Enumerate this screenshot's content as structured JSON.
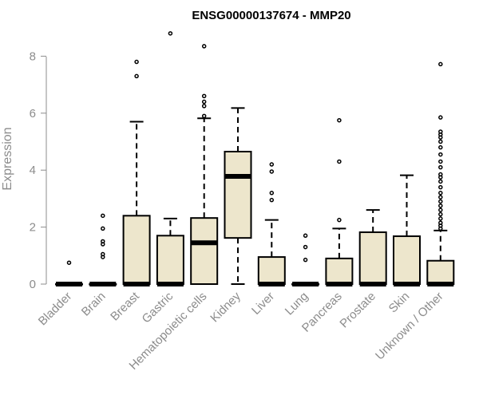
{
  "chart_data": {
    "type": "boxplot",
    "title": "ENSG00000137674 - MMP20",
    "xlabel": "",
    "ylabel": "Expression",
    "ylim": [
      0,
      8.8
    ],
    "yticks": [
      0,
      2,
      4,
      6,
      8
    ],
    "box_color": "#ede6cc",
    "outline_color": "#000000",
    "axis_color": "#8c8c8c",
    "categories": [
      "Bladder",
      "Brain",
      "Breast",
      "Gastric",
      "Hematopoietic cells",
      "Kidney",
      "Liver",
      "Lung",
      "Pancreas",
      "Prostate",
      "Skin",
      "Unknown / Other"
    ],
    "boxes": [
      {
        "q1": 0,
        "median": 0,
        "q3": 0,
        "whisker_low": 0,
        "whisker_high": 0,
        "outliers": [
          0.75
        ]
      },
      {
        "q1": 0,
        "median": 0,
        "q3": 0,
        "whisker_low": 0,
        "whisker_high": 0,
        "outliers": [
          0.95,
          1.05,
          1.4,
          1.5,
          1.95,
          2.4
        ]
      },
      {
        "q1": 0,
        "median": 0,
        "q3": 2.4,
        "whisker_low": 0,
        "whisker_high": 5.7,
        "outliers": [
          7.3,
          7.8
        ]
      },
      {
        "q1": 0,
        "median": 0,
        "q3": 1.7,
        "whisker_low": 0,
        "whisker_high": 2.3,
        "outliers": [
          8.8
        ]
      },
      {
        "q1": 0,
        "median": 1.45,
        "q3": 2.32,
        "whisker_low": 0,
        "whisker_high": 5.82,
        "outliers": [
          5.9,
          6.25,
          6.4,
          6.6,
          8.35
        ]
      },
      {
        "q1": 1.62,
        "median": 3.78,
        "q3": 4.65,
        "whisker_low": 0,
        "whisker_high": 6.18,
        "outliers": []
      },
      {
        "q1": 0,
        "median": 0,
        "q3": 0.95,
        "whisker_low": 0,
        "whisker_high": 2.25,
        "outliers": [
          2.95,
          3.2,
          3.95,
          4.2
        ]
      },
      {
        "q1": 0,
        "median": 0,
        "q3": 0,
        "whisker_low": 0,
        "whisker_high": 0,
        "outliers": [
          0.85,
          1.3,
          1.7
        ]
      },
      {
        "q1": 0,
        "median": 0,
        "q3": 0.9,
        "whisker_low": 0,
        "whisker_high": 1.95,
        "outliers": [
          2.25,
          4.3,
          5.75
        ]
      },
      {
        "q1": 0,
        "median": 0,
        "q3": 1.82,
        "whisker_low": 0,
        "whisker_high": 2.6,
        "outliers": []
      },
      {
        "q1": 0,
        "median": 0,
        "q3": 1.68,
        "whisker_low": 0,
        "whisker_high": 3.82,
        "outliers": []
      },
      {
        "q1": 0,
        "median": 0,
        "q3": 0.82,
        "whisker_low": 0,
        "whisker_high": 1.88,
        "outliers": [
          1.95,
          2.05,
          2.15,
          2.3,
          2.45,
          2.6,
          2.75,
          2.9,
          3.05,
          3.2,
          3.4,
          3.6,
          3.75,
          3.85,
          4.1,
          4.3,
          4.55,
          4.8,
          5.0,
          5.15,
          5.25,
          5.35,
          5.85,
          7.72
        ]
      }
    ]
  }
}
